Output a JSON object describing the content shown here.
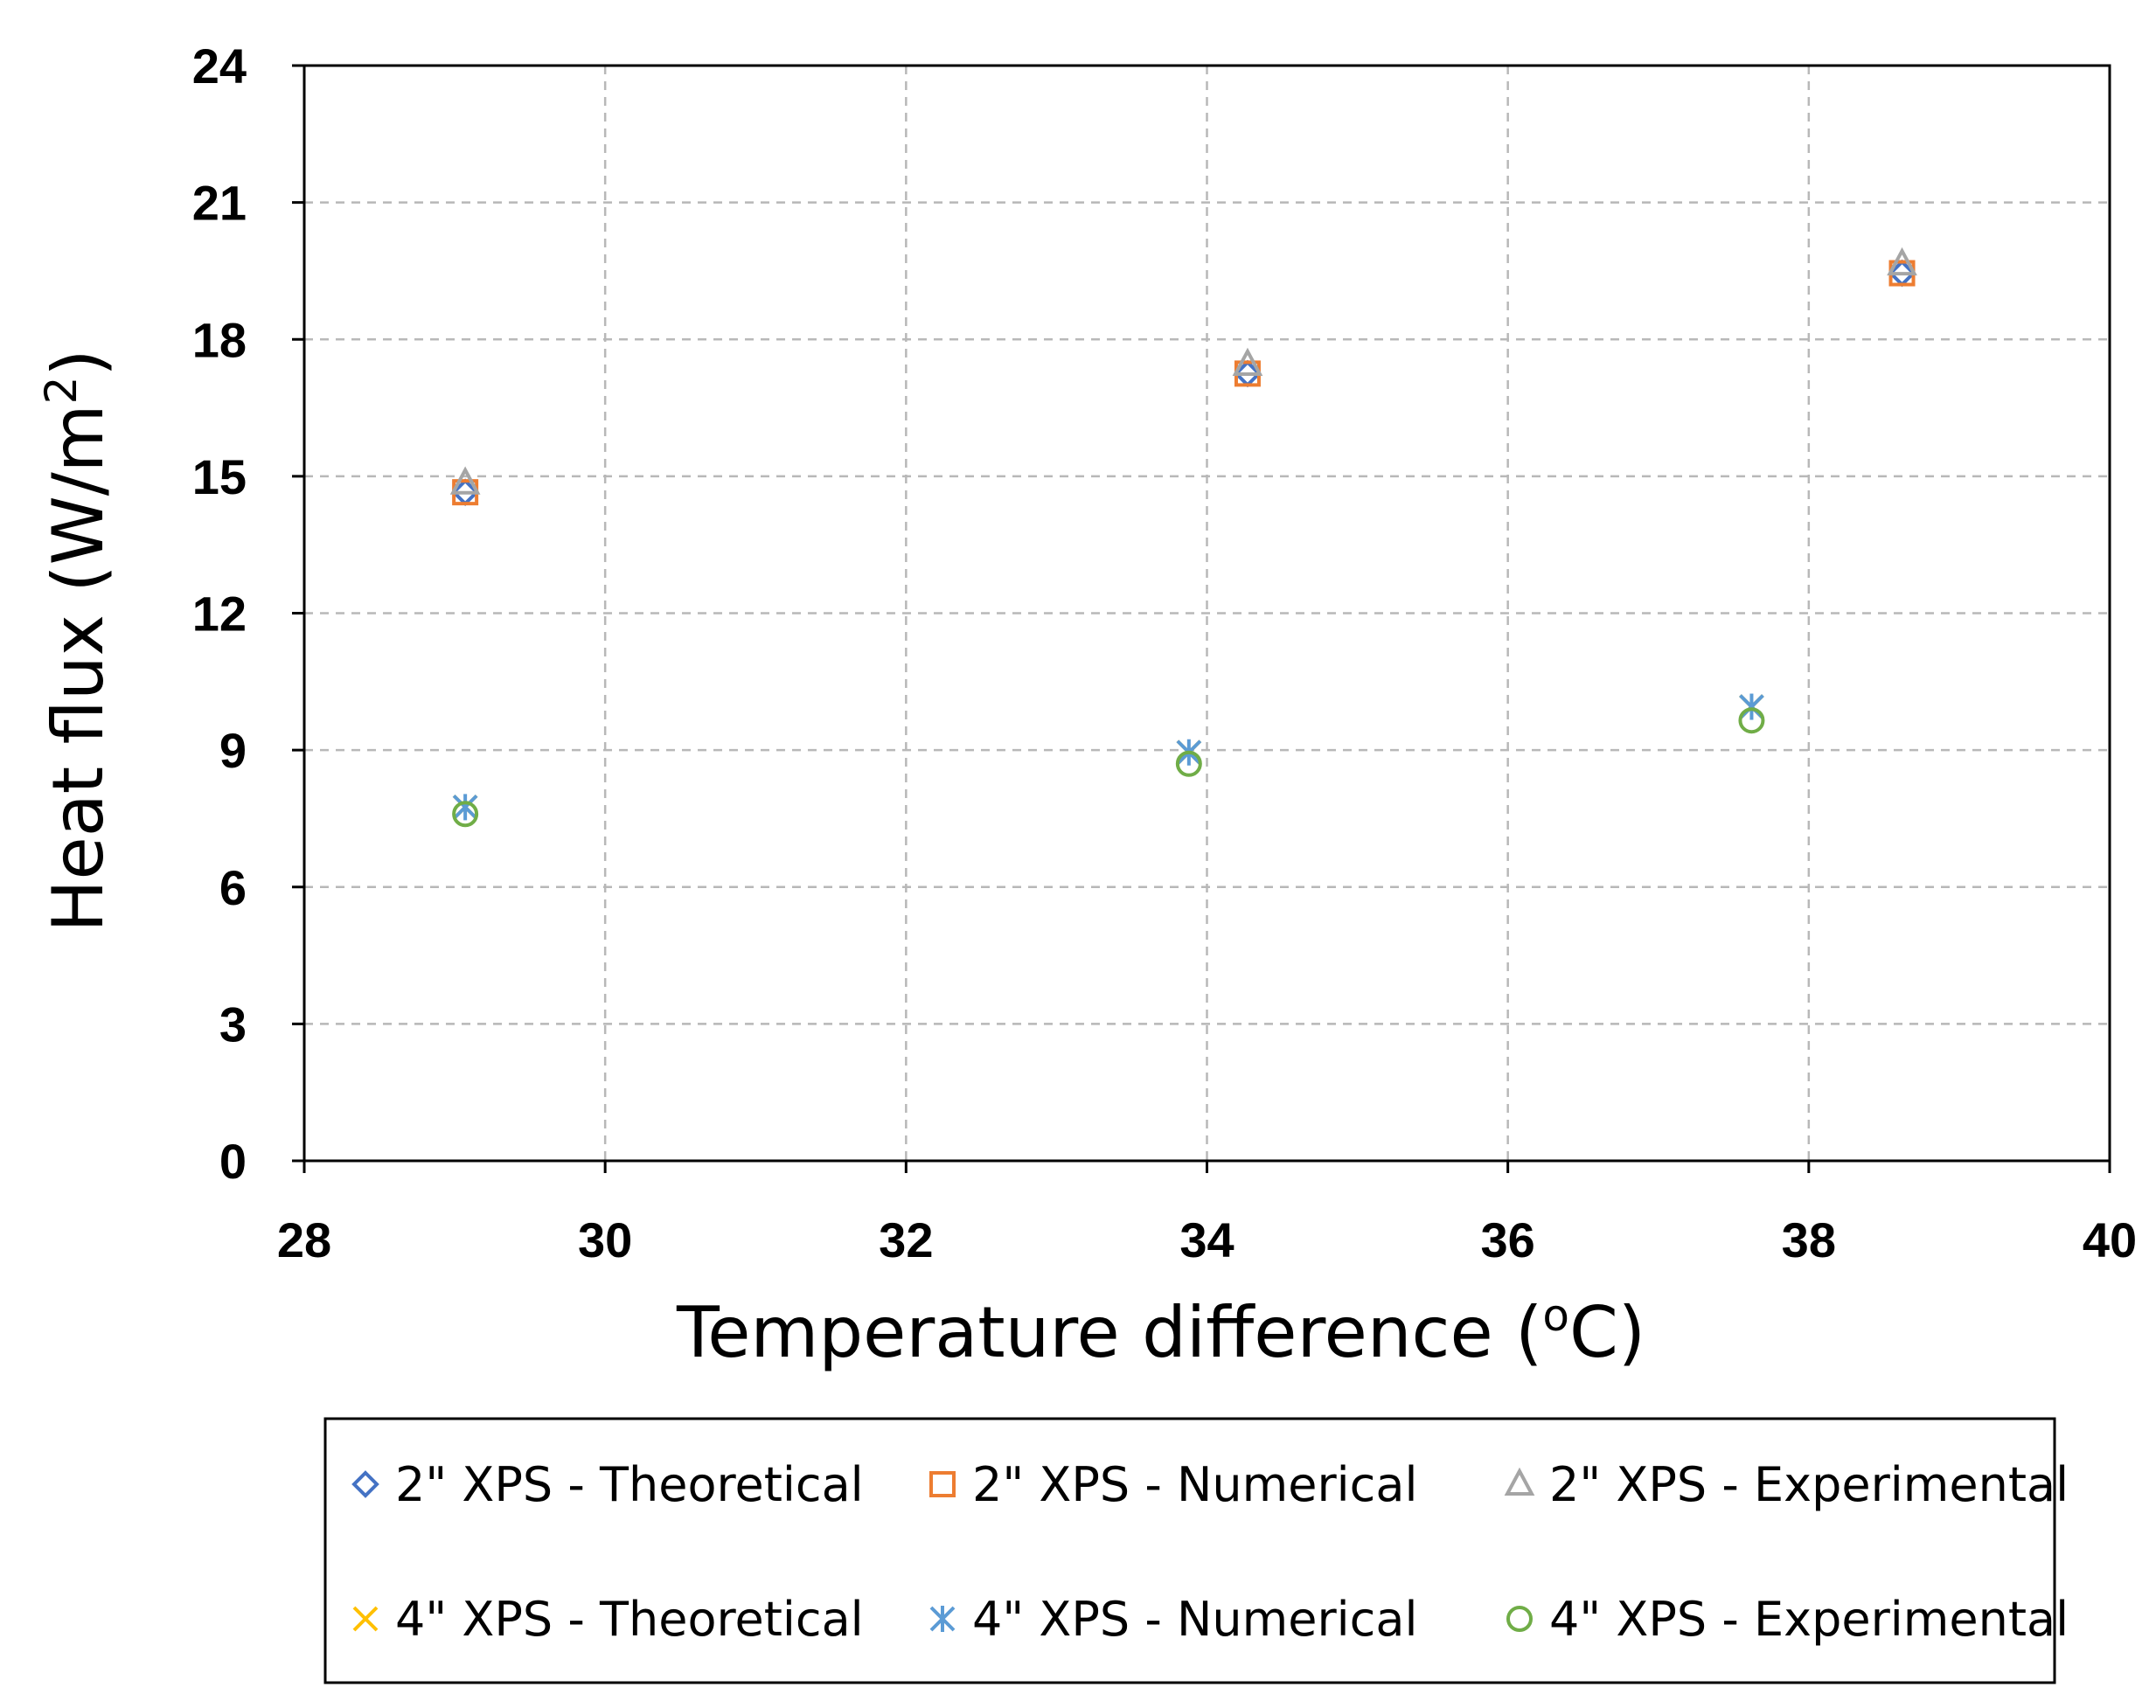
{
  "chart_data": {
    "type": "scatter",
    "xlabel": {
      "main": "Temperature difference (",
      "sup": "o",
      "tail": "C)"
    },
    "ylabel": {
      "main": "Heat flux (W/m",
      "sup": "2",
      "tail": ")"
    },
    "xlim": [
      28,
      40
    ],
    "ylim": [
      0,
      24
    ],
    "xticks": [
      "28",
      "30",
      "32",
      "34",
      "36",
      "38",
      "40"
    ],
    "yticks": [
      "0",
      "3",
      "6",
      "9",
      "12",
      "15",
      "18",
      "21",
      "24"
    ],
    "grid": true,
    "legend_position": "bottom",
    "series": [
      {
        "name": "2\" XPS - Theoretical",
        "marker": "diamond",
        "color": "#4472C4",
        "points": [
          [
            29.07,
            14.65
          ],
          [
            34.27,
            17.25
          ],
          [
            38.62,
            19.45
          ]
        ]
      },
      {
        "name": "2\" XPS - Numerical",
        "marker": "square",
        "color": "#ED7D31",
        "points": [
          [
            29.07,
            14.65
          ],
          [
            34.27,
            17.25
          ],
          [
            38.62,
            19.45
          ]
        ]
      },
      {
        "name": "2\" XPS - Experimental",
        "marker": "triangle",
        "color": "#A5A5A5",
        "points": [
          [
            29.07,
            14.85
          ],
          [
            34.27,
            17.45
          ],
          [
            38.62,
            19.65
          ]
        ]
      },
      {
        "name": "4\" XPS - Theoretical",
        "marker": "x",
        "color": "#FFC000",
        "points": [
          [
            29.07,
            7.75
          ],
          [
            33.88,
            8.95
          ],
          [
            37.62,
            9.95
          ]
        ]
      },
      {
        "name": "4\" XPS - Numerical",
        "marker": "asterisk",
        "color": "#5B9BD5",
        "points": [
          [
            29.07,
            7.75
          ],
          [
            33.88,
            8.95
          ],
          [
            37.62,
            9.95
          ]
        ]
      },
      {
        "name": "4\" XPS - Experimental",
        "marker": "circle",
        "color": "#70AD47",
        "points": [
          [
            29.07,
            7.6
          ],
          [
            33.88,
            8.7
          ],
          [
            37.62,
            9.65
          ]
        ]
      }
    ]
  }
}
